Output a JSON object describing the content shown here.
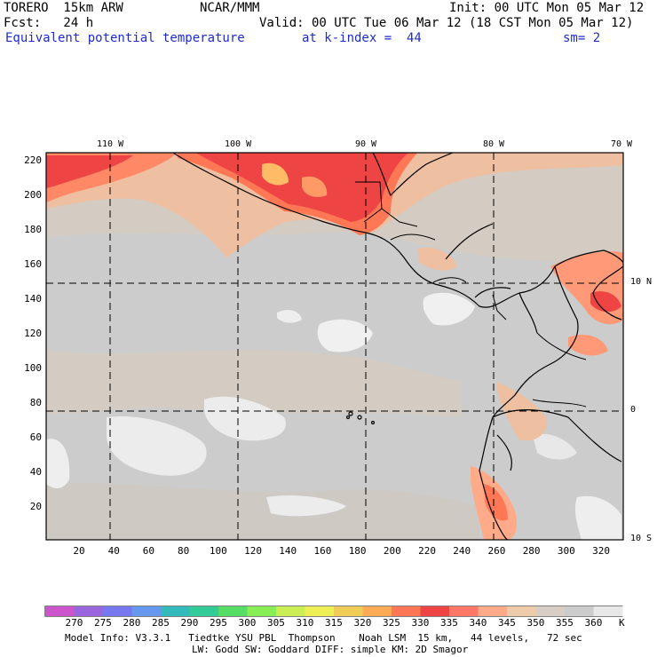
{
  "header": {
    "model": "TORERO  15km ARW",
    "org": "NCAR/MMM",
    "init": "Init: 00 UTC Mon 05 Mar 12",
    "fcst": "Fcst:   24 h",
    "valid": "Valid: 00 UTC Tue 06 Mar 12 (18 CST Mon 05 Mar 12)",
    "field": "Equivalent potential temperature",
    "level": "at k-index =  44",
    "smooth": "sm= 2"
  },
  "map": {
    "lon_labels": [
      "110 W",
      "100 W",
      "90 W",
      "80 W",
      "70 W"
    ],
    "lat_labels": [
      "10 N",
      "0",
      "10 S"
    ],
    "y_ticks": [
      "20",
      "40",
      "60",
      "80",
      "100",
      "120",
      "140",
      "160",
      "180",
      "200",
      "220"
    ],
    "x_ticks": [
      "20",
      "40",
      "60",
      "80",
      "100",
      "120",
      "140",
      "160",
      "180",
      "200",
      "220",
      "240",
      "260",
      "280",
      "300",
      "320"
    ]
  },
  "colorbar": {
    "unit": "K",
    "labels": [
      "270",
      "275",
      "280",
      "285",
      "290",
      "295",
      "300",
      "305",
      "310",
      "315",
      "320",
      "325",
      "330",
      "335",
      "340",
      "345",
      "350",
      "355",
      "360"
    ],
    "colors": [
      "#cc55cc",
      "#9966dd",
      "#7777ee",
      "#6699ee",
      "#33bbbb",
      "#33cc99",
      "#55dd66",
      "#88ee55",
      "#ccee55",
      "#eeee55",
      "#eecc55",
      "#ffaa55",
      "#ff7755",
      "#ee4444",
      "#ff7766",
      "#ffaa88",
      "#eeccaa",
      "#d8cec6",
      "#cccccc",
      "#e8e8e8"
    ]
  },
  "footer": {
    "line1": "Model Info: V3.3.1   Tiedtke YSU PBL  Thompson    Noah LSM  15 km,   44 levels,   72 sec",
    "line2": "LW: Godd SW: Goddard DIFF: simple KM: 2D Smagor"
  }
}
